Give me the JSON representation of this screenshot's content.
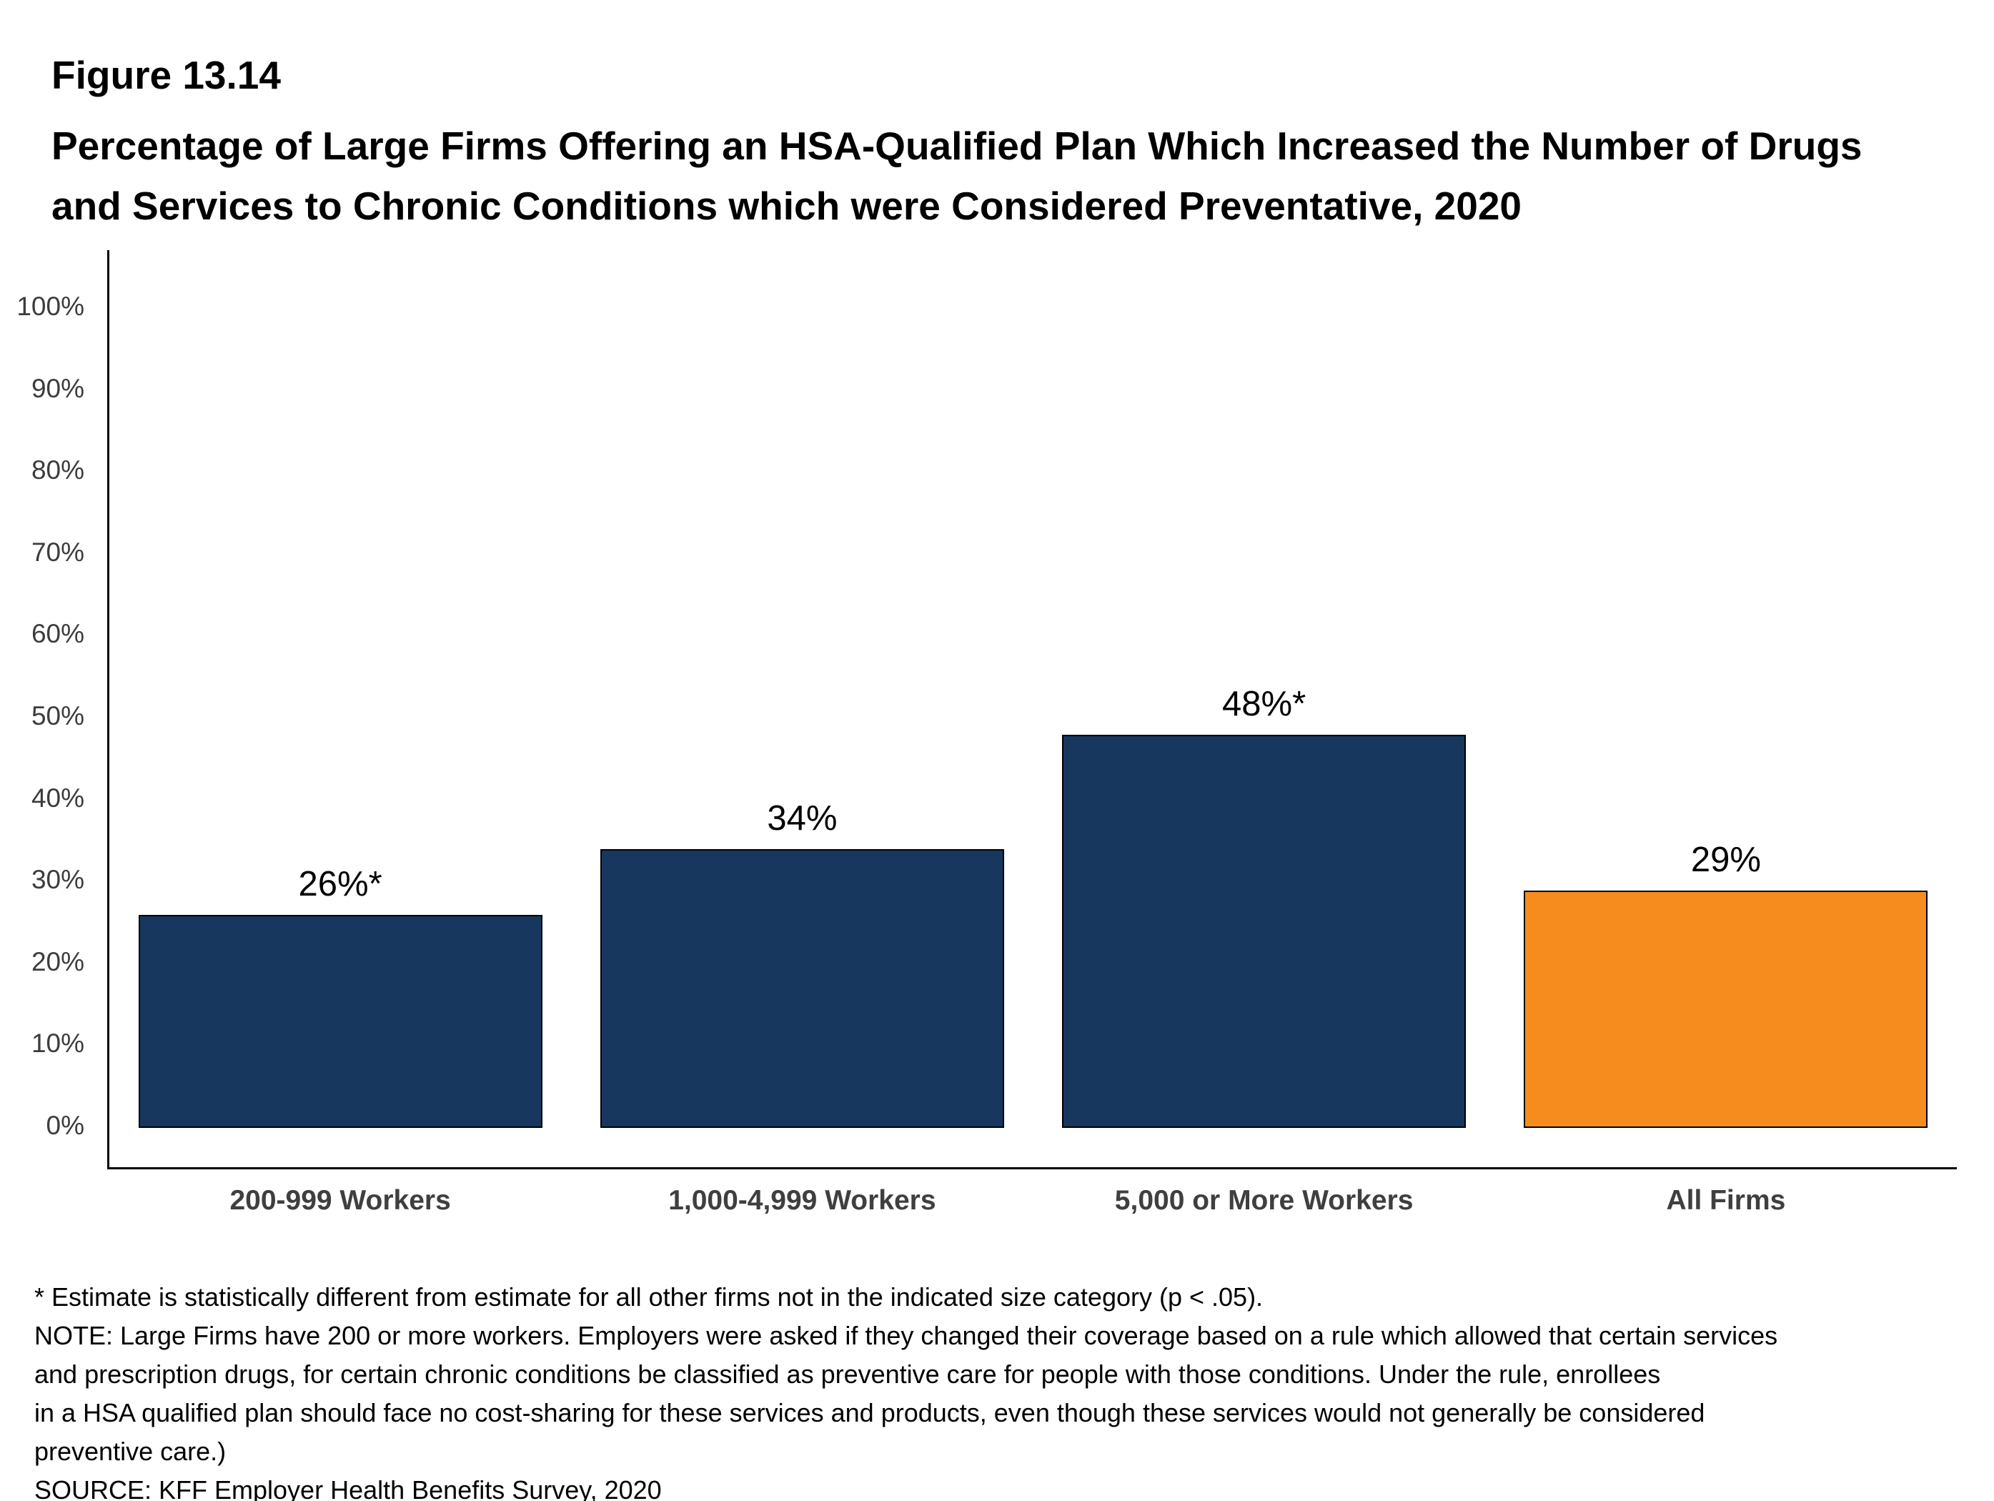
{
  "header": {
    "figure_label": "Figure 13.14",
    "title": "Percentage of Large Firms Offering an HSA-Qualified Plan Which Increased the Number of Drugs and Services to Chronic Conditions which were Considered Preventative, 2020"
  },
  "chart_data": {
    "type": "bar",
    "title": "Percentage of Large Firms Offering an HSA-Qualified Plan Which Increased the Number of Drugs and Services to Chronic Conditions which were Considered Preventative, 2020",
    "categories": [
      "200-999 Workers",
      "1,000-4,999 Workers",
      "5,000 or More Workers",
      "All Firms"
    ],
    "values": [
      26,
      34,
      48,
      29
    ],
    "value_labels": [
      "26%*",
      "34%",
      "48%*",
      "29%"
    ],
    "bar_colors": [
      "#17375E",
      "#17375E",
      "#17375E",
      "#F68C1E"
    ],
    "xlabel": "",
    "ylabel": "",
    "ylim": [
      0,
      100
    ],
    "ytick_step": 10,
    "yticks": [
      "0%",
      "10%",
      "20%",
      "30%",
      "40%",
      "50%",
      "60%",
      "70%",
      "80%",
      "90%",
      "100%"
    ],
    "grid": false,
    "legend": "none",
    "colors": {
      "navy": "#17375E",
      "orange": "#F68C1E",
      "axis": "#000000"
    }
  },
  "footnotes": {
    "lines": [
      "* Estimate is statistically different from estimate for all other firms not in the indicated size category (p < .05).",
      "NOTE: Large Firms have 200 or more workers.  Employers were asked if they changed their coverage based on a rule which allowed that certain services",
      "and prescription drugs, for certain chronic conditions be classified as preventive care for people with those conditions. Under the rule, enrollees",
      "in a HSA qualified plan should face no cost-sharing for these services and products, even though these services would not generally be considered",
      "preventive care.)",
      "SOURCE: KFF Employer Health Benefits Survey, 2020"
    ]
  }
}
